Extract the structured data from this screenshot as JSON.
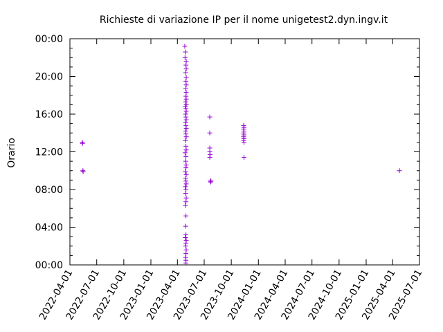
{
  "chart_data": {
    "type": "scatter",
    "title": "Richieste di variazione IP per il nome unigetest2.dyn.ingv.it",
    "ylabel": "Orario",
    "xlabel": "",
    "xlim": [
      "2022-04-01",
      "2025-07-01"
    ],
    "ylim": [
      0,
      24
    ],
    "x_ticks": [
      "2022-04-01",
      "2022-07-01",
      "2022-10-01",
      "2023-01-01",
      "2023-04-01",
      "2023-07-01",
      "2023-10-01",
      "2024-01-01",
      "2024-04-01",
      "2024-07-01",
      "2024-10-01",
      "2025-01-01",
      "2025-04-01",
      "2025-07-01"
    ],
    "y_ticks": [
      "00:00",
      "04:00",
      "08:00",
      "12:00",
      "16:00",
      "20:00",
      "00:00"
    ],
    "grid": false,
    "marker": "+",
    "color": "#9400d3",
    "series": [
      {
        "points": [
          [
            "2022-05-13",
            13.0
          ],
          [
            "2022-05-14",
            12.9
          ],
          [
            "2022-05-15",
            10.0
          ],
          [
            "2022-05-16",
            9.9
          ],
          [
            "2023-04-26",
            23.2
          ],
          [
            "2023-04-28",
            22.6
          ],
          [
            "2023-04-27",
            22.0
          ],
          [
            "2023-05-01",
            21.6
          ],
          [
            "2023-04-30",
            21.2
          ],
          [
            "2023-05-01",
            20.8
          ],
          [
            "2023-04-29",
            20.4
          ],
          [
            "2023-05-01",
            19.9
          ],
          [
            "2023-04-30",
            19.5
          ],
          [
            "2023-05-01",
            19.1
          ],
          [
            "2023-04-29",
            18.7
          ],
          [
            "2023-05-01",
            18.3
          ],
          [
            "2023-04-30",
            17.9
          ],
          [
            "2023-05-01",
            17.6
          ],
          [
            "2023-04-29",
            17.3
          ],
          [
            "2023-05-01",
            17.0
          ],
          [
            "2023-04-28",
            16.8
          ],
          [
            "2023-04-30",
            16.6
          ],
          [
            "2023-05-01",
            16.3
          ],
          [
            "2023-04-29",
            16.0
          ],
          [
            "2023-04-30",
            15.7
          ],
          [
            "2023-05-01",
            15.4
          ],
          [
            "2023-04-29",
            15.1
          ],
          [
            "2023-04-30",
            14.8
          ],
          [
            "2023-05-01",
            14.5
          ],
          [
            "2023-04-29",
            14.2
          ],
          [
            "2023-04-30",
            13.9
          ],
          [
            "2023-05-01",
            13.6
          ],
          [
            "2023-04-28",
            13.2
          ],
          [
            "2023-04-30",
            12.6
          ],
          [
            "2023-05-01",
            12.2
          ],
          [
            "2023-04-27",
            11.9
          ],
          [
            "2023-04-30",
            11.5
          ],
          [
            "2023-04-29",
            11.0
          ],
          [
            "2023-05-01",
            10.6
          ],
          [
            "2023-04-30",
            10.3
          ],
          [
            "2023-04-28",
            9.9
          ],
          [
            "2023-05-01",
            9.6
          ],
          [
            "2023-04-29",
            9.2
          ],
          [
            "2023-04-30",
            8.9
          ],
          [
            "2023-05-01",
            8.6
          ],
          [
            "2023-04-28",
            8.3
          ],
          [
            "2023-04-30",
            8.0
          ],
          [
            "2023-04-29",
            7.6
          ],
          [
            "2023-05-01",
            7.1
          ],
          [
            "2023-04-30",
            6.7
          ],
          [
            "2023-04-28",
            6.3
          ],
          [
            "2023-04-30",
            5.2
          ],
          [
            "2023-04-29",
            4.1
          ],
          [
            "2023-04-30",
            3.2
          ],
          [
            "2023-04-28",
            2.9
          ],
          [
            "2023-05-01",
            2.6
          ],
          [
            "2023-04-30",
            2.3
          ],
          [
            "2023-04-29",
            2.0
          ],
          [
            "2023-05-01",
            1.6
          ],
          [
            "2023-04-30",
            1.2
          ],
          [
            "2023-04-29",
            0.8
          ],
          [
            "2023-04-30",
            0.5
          ],
          [
            "2023-04-30",
            0.2
          ],
          [
            "2023-07-20",
            15.7
          ],
          [
            "2023-07-20",
            14.0
          ],
          [
            "2023-07-20",
            12.4
          ],
          [
            "2023-07-20",
            12.0
          ],
          [
            "2023-07-21",
            11.7
          ],
          [
            "2023-07-20",
            11.4
          ],
          [
            "2023-07-22",
            8.9
          ],
          [
            "2023-07-23",
            8.8
          ],
          [
            "2023-07-24",
            8.9
          ],
          [
            "2023-11-12",
            14.8
          ],
          [
            "2023-11-13",
            14.6
          ],
          [
            "2023-11-12",
            14.4
          ],
          [
            "2023-11-13",
            14.2
          ],
          [
            "2023-11-12",
            14.0
          ],
          [
            "2023-11-13",
            13.8
          ],
          [
            "2023-11-12",
            13.6
          ],
          [
            "2023-11-13",
            13.4
          ],
          [
            "2023-11-12",
            13.2
          ],
          [
            "2023-11-13",
            13.0
          ],
          [
            "2023-11-13",
            11.4
          ],
          [
            "2025-04-24",
            10.0
          ]
        ]
      }
    ]
  }
}
